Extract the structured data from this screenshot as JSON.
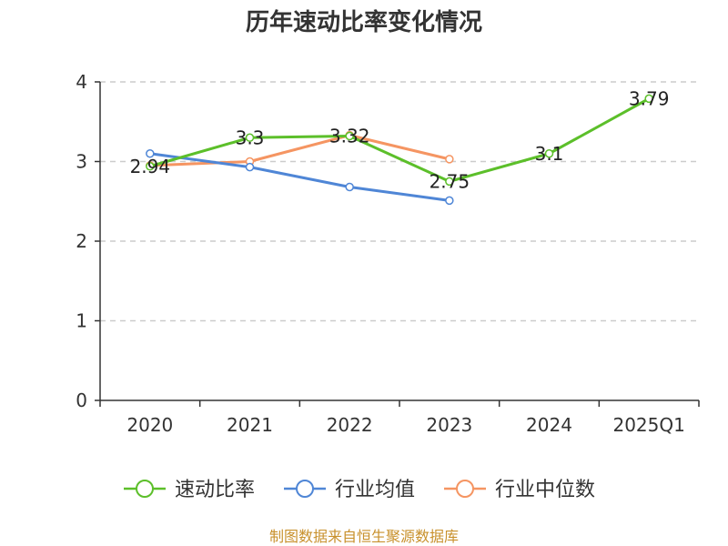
{
  "chart_data": {
    "type": "line",
    "title": "历年速动比率变化情况",
    "categories": [
      "2020",
      "2021",
      "2022",
      "2023",
      "2024",
      "2025Q1"
    ],
    "ylim": [
      0,
      4
    ],
    "yticks": [
      0,
      1,
      2,
      3,
      4
    ],
    "grid": true,
    "series": [
      {
        "name": "速动比率",
        "color": "#5cbf2a",
        "values": [
          2.94,
          3.3,
          3.32,
          2.75,
          3.1,
          3.79
        ],
        "labels": [
          "2.94",
          "3.3",
          "3.32",
          "2.75",
          "3.1",
          "3.79"
        ]
      },
      {
        "name": "行业均值",
        "color": "#4f86d6",
        "values": [
          3.1,
          2.93,
          2.68,
          2.51,
          null,
          null
        ]
      },
      {
        "name": "行业中位数",
        "color": "#f59562",
        "values": [
          2.95,
          3.0,
          3.33,
          3.03,
          null,
          null
        ]
      }
    ],
    "legend_position": "bottom",
    "source": "制图数据来自恒生聚源数据库"
  }
}
